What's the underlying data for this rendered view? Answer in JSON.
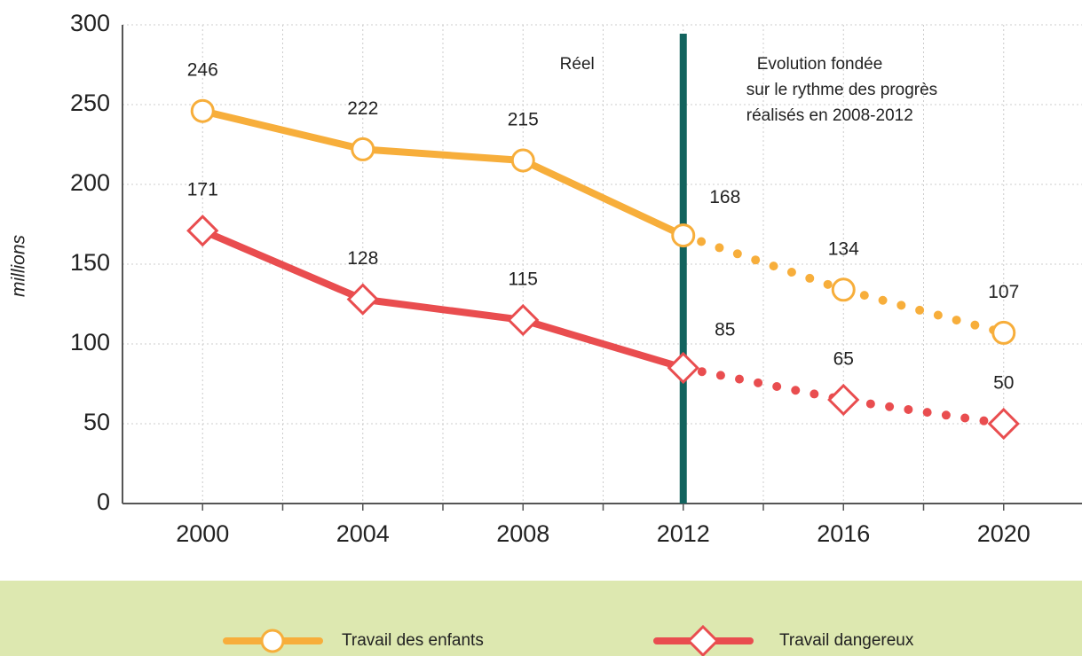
{
  "chart_data": {
    "type": "line",
    "y_label": "millions",
    "x": [
      2000,
      2004,
      2008,
      2012,
      2016,
      2020
    ],
    "series": [
      {
        "name": "Travail des enfants",
        "color": "#f7ae3b",
        "marker": "circle",
        "values": [
          246,
          222,
          215,
          168,
          134,
          107
        ]
      },
      {
        "name": "Travail dangereux",
        "color": "#e94d4f",
        "marker": "diamond",
        "values": [
          171,
          128,
          115,
          85,
          65,
          50
        ]
      }
    ],
    "xlim": [
      1998,
      2022
    ],
    "xticks": [
      2000,
      2004,
      2008,
      2012,
      2016,
      2020
    ],
    "xminorticks": [
      2002,
      2006,
      2010,
      2014,
      2018
    ],
    "ylim": [
      0,
      300
    ],
    "yticks": [
      0,
      50,
      100,
      150,
      200,
      250,
      300
    ],
    "grid": true,
    "divider": {
      "x": 2012,
      "color": "#12635e"
    },
    "annotations": [
      {
        "lines": [
          "Réel"
        ]
      },
      {
        "lines": [
          "Evolution fondée",
          "sur le rythme des progrès",
          "réalisés en 2008-2012"
        ]
      }
    ],
    "legend": "bottom"
  }
}
